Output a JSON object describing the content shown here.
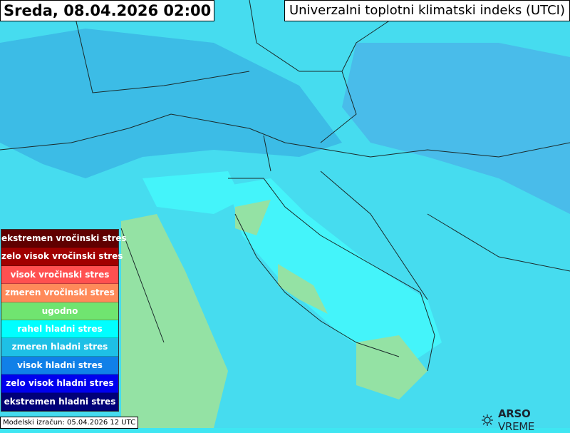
{
  "header": {
    "date": "Sreda, 08.04.2026 02:00",
    "title": "Univerzalni toplotni klimatski indeks (UTCI)"
  },
  "legend": [
    {
      "label": "ekstremen vročinski stres",
      "color": "#600000"
    },
    {
      "label": "zelo visok vročinski stres",
      "color": "#a00000"
    },
    {
      "label": "visok vročinski stres",
      "color": "#ff5050"
    },
    {
      "label": "zmeren vročinski stres",
      "color": "#ff8a5a"
    },
    {
      "label": "ugodno",
      "color": "#70e470"
    },
    {
      "label": "rahel hladni stres",
      "color": "#00ffff"
    },
    {
      "label": "zmeren hladni stres",
      "color": "#1ec0e6"
    },
    {
      "label": "visok hladni stres",
      "color": "#1080e8"
    },
    {
      "label": "zelo visok hladni stres",
      "color": "#0000ee"
    },
    {
      "label": "ekstremen hladni stres",
      "color": "#000078"
    }
  ],
  "footer": {
    "model_run": "Modelski izračun: 05.04.2026 12 UTC"
  },
  "logo": {
    "brand": "ARSO",
    "product": "VREME",
    "icon": "sun-cloud-icon"
  },
  "map_colors": {
    "sea": "#44f0f8",
    "land_cool": "#4cd8ee",
    "mountain": "#3cb6e4",
    "comfort": "#94e2a4",
    "cold": "#5a9ee8"
  }
}
